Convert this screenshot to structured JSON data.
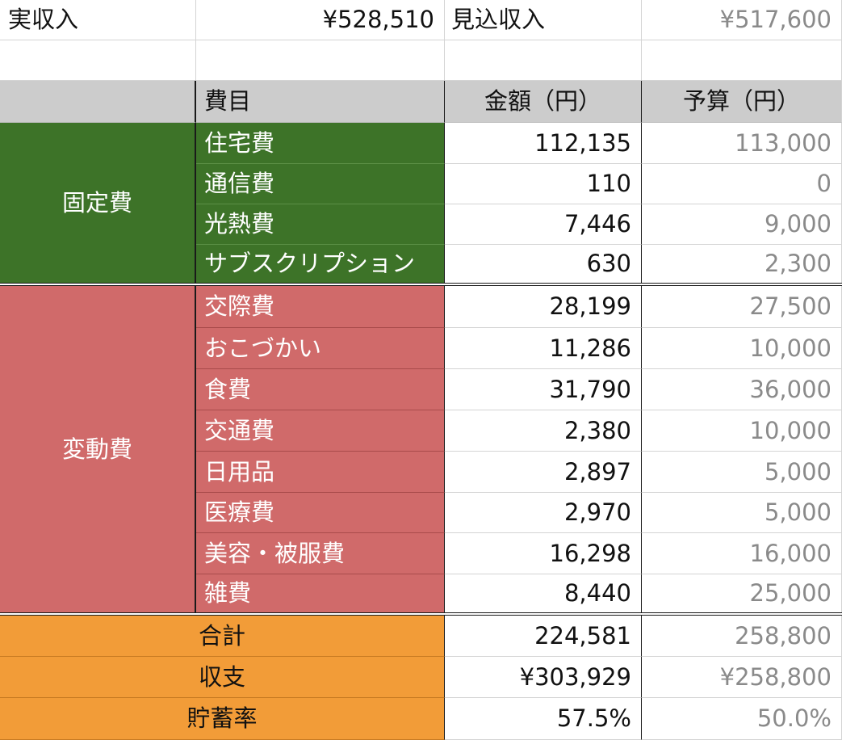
{
  "income": {
    "actual_label": "実収入",
    "actual_value": "¥528,510",
    "expected_label": "見込収入",
    "expected_value": "¥517,600"
  },
  "table": {
    "headers": {
      "category": "",
      "item": "費目",
      "amount": "金額（円）",
      "budget": "予算（円）"
    },
    "fixed": {
      "group_label": "固定費",
      "rows": [
        {
          "item": "住宅費",
          "amount": "112,135",
          "budget": "113,000"
        },
        {
          "item": "通信費",
          "amount": "110",
          "budget": "0"
        },
        {
          "item": "光熱費",
          "amount": "7,446",
          "budget": "9,000"
        },
        {
          "item": "サブスクリプション",
          "amount": "630",
          "budget": "2,300"
        }
      ]
    },
    "variable": {
      "group_label": "変動費",
      "rows": [
        {
          "item": "交際費",
          "amount": "28,199",
          "budget": "27,500"
        },
        {
          "item": "おこづかい",
          "amount": "11,286",
          "budget": "10,000"
        },
        {
          "item": "食費",
          "amount": "31,790",
          "budget": "36,000"
        },
        {
          "item": "交通費",
          "amount": "2,380",
          "budget": "10,000"
        },
        {
          "item": "日用品",
          "amount": "2,897",
          "budget": "5,000"
        },
        {
          "item": "医療費",
          "amount": "2,970",
          "budget": "5,000"
        },
        {
          "item": "美容・被服費",
          "amount": "16,298",
          "budget": "16,000"
        },
        {
          "item": "雑費",
          "amount": "8,440",
          "budget": "25,000"
        }
      ]
    },
    "summary": [
      {
        "label": "合計",
        "amount": "224,581",
        "budget": "258,800"
      },
      {
        "label": "収支",
        "amount": "¥303,929",
        "budget": "¥258,800"
      },
      {
        "label": "貯蓄率",
        "amount": "57.5%",
        "budget": "50.0%"
      }
    ]
  },
  "colors": {
    "header_gray": "#cccccc",
    "fixed_green": "#3d7328",
    "variable_red": "#d06a6a",
    "summary_orange": "#f29c38",
    "muted_text": "#8a8a8a"
  }
}
